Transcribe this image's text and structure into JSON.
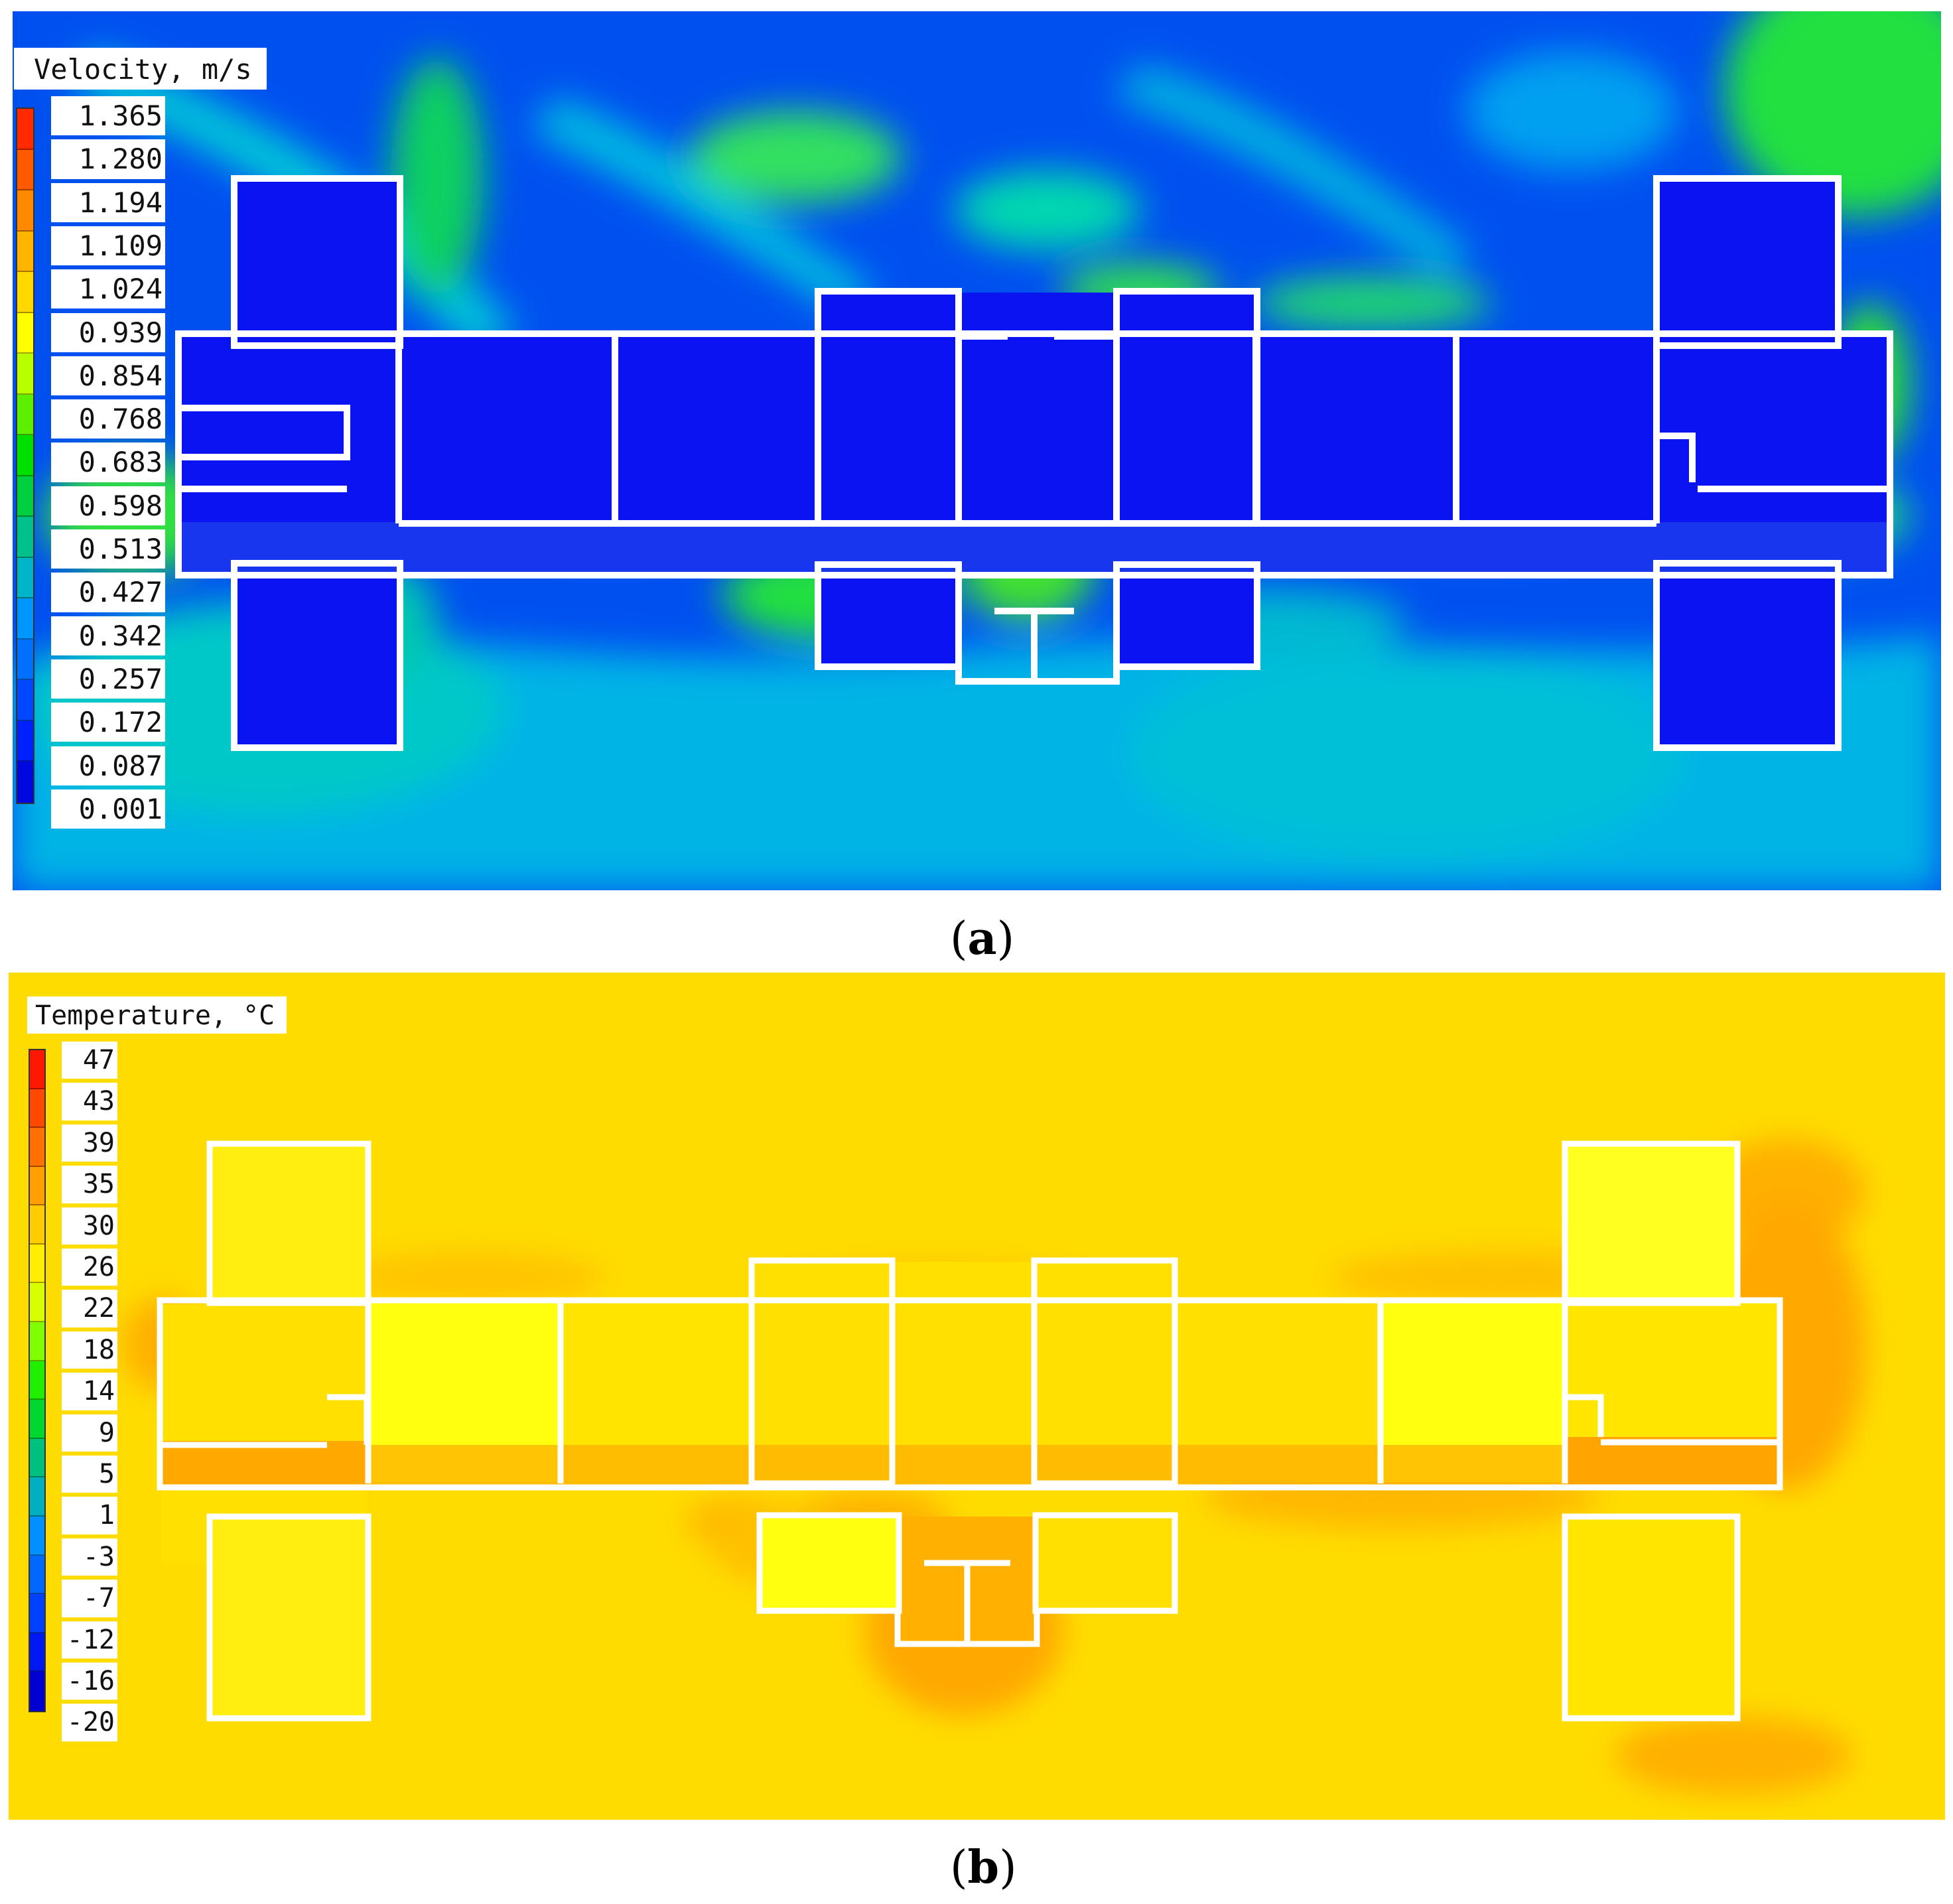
{
  "panel_a": {
    "legend_title": "Velocity, m/s",
    "legend_values": [
      "1.365",
      "1.280",
      "1.194",
      "1.109",
      "1.024",
      "0.939",
      "0.854",
      "0.768",
      "0.683",
      "0.598",
      "0.513",
      "0.427",
      "0.342",
      "0.257",
      "0.172",
      "0.087",
      "0.001"
    ],
    "legend_colors": [
      "#ff2a00",
      "#ff5a00",
      "#ff8a00",
      "#ffb400",
      "#ffd800",
      "#ffff00",
      "#b8ff00",
      "#5cf000",
      "#00e000",
      "#00d040",
      "#00c08c",
      "#00b4c8",
      "#0096ff",
      "#0070ff",
      "#0048ff",
      "#0020ff",
      "#0008e0"
    ],
    "caption": "a"
  },
  "panel_b": {
    "legend_title": "Temperature, °C",
    "legend_values": [
      "47",
      "43",
      "39",
      "35",
      "30",
      "26",
      "22",
      "18",
      "14",
      "9",
      "5",
      "1",
      "-3",
      "-7",
      "-12",
      "-16",
      "-20"
    ],
    "legend_colors": [
      "#ff1800",
      "#ff4800",
      "#ff7000",
      "#ffa000",
      "#ffcc00",
      "#ffee00",
      "#d8ff00",
      "#80ff00",
      "#20f000",
      "#00d830",
      "#00c080",
      "#00b0c0",
      "#0090ff",
      "#0068ff",
      "#0040ff",
      "#0018f0",
      "#0000d0"
    ],
    "caption": "b"
  },
  "colors": {
    "wall": "#ffffff",
    "velocity_room": "#0a14f0",
    "velocity_field": "#0050f0",
    "velocity_far_field": "#00b4e6",
    "velocity_jet": "#10e030",
    "temperature_field": "#ffdc00",
    "temperature_warm": "#ffb000",
    "temperature_cool": "#ffff10"
  }
}
